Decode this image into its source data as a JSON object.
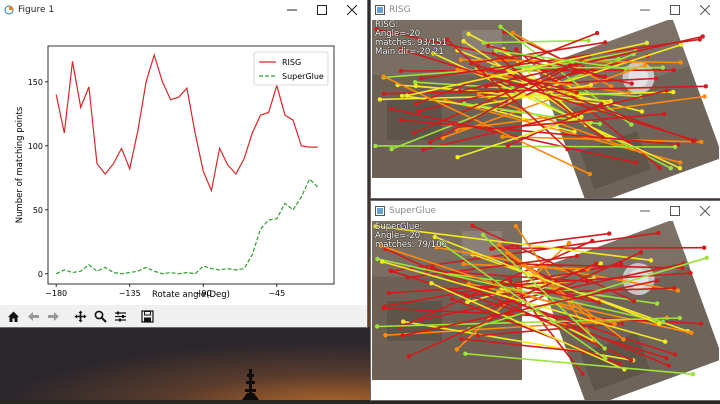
{
  "figure_window": {
    "title": "Figure 1",
    "toolbar": [
      "home-icon",
      "back-icon",
      "forward-icon",
      "pan-icon",
      "zoom-icon",
      "configure-icon",
      "save-icon"
    ]
  },
  "risg_window": {
    "title": "RISG",
    "overlay": [
      "RISG:",
      "Angle=-20",
      "matches: 93/151",
      "Main dir=-20.21"
    ]
  },
  "superglue_window": {
    "title": "SuperGlue",
    "overlay": [
      "SuperGlue:",
      "Angle=-20",
      "matches: 79/106"
    ]
  },
  "colors": {
    "risg": "#d62728",
    "superglue": "#2ca02c",
    "match_red": "#d01c1c",
    "match_yellow": "#f4ea24",
    "match_green": "#9be23a",
    "match_orange": "#ff8a0a"
  },
  "chart_data": {
    "type": "line",
    "title": "",
    "xlabel": "Rotate angle(Deg)",
    "ylabel": "Number of matching points",
    "xlim": [
      -185,
      -10
    ],
    "ylim": [
      -8,
      178
    ],
    "xticks": [
      -180,
      -135,
      -90,
      -45
    ],
    "yticks": [
      0,
      50,
      100,
      150
    ],
    "legend_position": "top-right",
    "x": [
      -180,
      -175,
      -170,
      -165,
      -160,
      -155,
      -150,
      -145,
      -140,
      -135,
      -130,
      -125,
      -120,
      -115,
      -110,
      -105,
      -100,
      -95,
      -90,
      -85,
      -80,
      -75,
      -70,
      -65,
      -60,
      -55,
      -50,
      -45,
      -40,
      -35,
      -30,
      -25,
      -20
    ],
    "series": [
      {
        "name": "RISG",
        "color": "#d62728",
        "style": "solid",
        "values": [
          140,
          110,
          166,
          130,
          146,
          86,
          78,
          86,
          98,
          82,
          112,
          150,
          171,
          150,
          136,
          138,
          145,
          110,
          80,
          65,
          98,
          85,
          78,
          90,
          110,
          124,
          126,
          147,
          124,
          120,
          100,
          99,
          99
        ]
      },
      {
        "name": "SuperGlue",
        "color": "#2ca02c",
        "style": "dashed",
        "values": [
          0,
          3,
          1,
          2,
          7,
          2,
          5,
          1,
          0,
          1,
          2,
          5,
          2,
          0,
          1,
          0,
          1,
          0,
          6,
          4,
          3,
          4,
          3,
          4,
          15,
          35,
          42,
          43,
          55,
          50,
          60,
          74,
          68
        ]
      }
    ]
  }
}
